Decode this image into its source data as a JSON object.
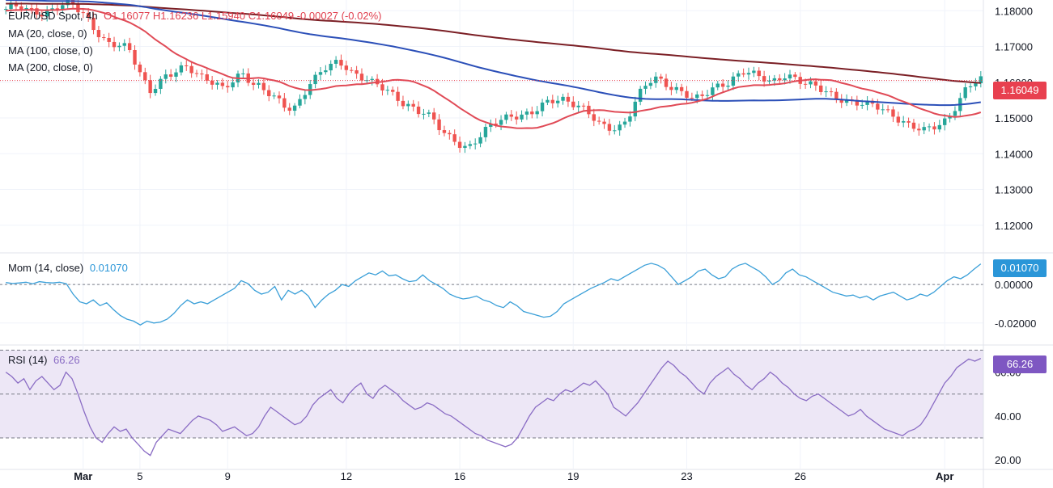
{
  "header": {
    "symbol": "EUR/USD Spot, 4h",
    "ohlc_label": "O1.16077  H1.16236  L1.15940  C1.16049  -0.00027 (-0.02%)"
  },
  "legend": {
    "ma20": "MA (20, close, 0)",
    "ma100": "MA (100, close, 0)",
    "ma200": "MA (200, close, 0)",
    "mom_label": "Mom (14, close)",
    "mom_value": "0.01070",
    "rsi_label": "RSI (14)",
    "rsi_value": "66.26"
  },
  "badges": {
    "price": "1.16049",
    "mom": "0.01070",
    "rsi": "66.26"
  },
  "colors": {
    "bull": "#26a69a",
    "bear": "#ef5350",
    "ma20": "#e04a56",
    "ma100": "#2b4fb8",
    "ma200": "#7b1f25",
    "momentum": "#3a9fd8",
    "rsi": "#8a6cc4",
    "rsi_band": "#ede7f6",
    "price_badge": "#e8404f",
    "mom_badge": "#2a96d8",
    "rsi_badge": "#7e57c2"
  },
  "chart_data": [
    {
      "type": "candlestick",
      "name": "price",
      "y_ticks": [
        "1.18000",
        "1.17000",
        "1.16000",
        "1.15000",
        "1.14000",
        "1.13000",
        "1.12000"
      ],
      "ylim": [
        1.1125,
        1.183
      ],
      "x_labels": [
        {
          "label": "Mar",
          "x": 15
        },
        {
          "label": "5",
          "x": 26
        },
        {
          "label": "9",
          "x": 43
        },
        {
          "label": "12",
          "x": 66
        },
        {
          "label": "16",
          "x": 88
        },
        {
          "label": "19",
          "x": 110
        },
        {
          "label": "23",
          "x": 132
        },
        {
          "label": "26",
          "x": 154
        },
        {
          "label": "Apr",
          "x": 182
        }
      ],
      "x_count": 190,
      "close": [
        1.1805,
        1.1812,
        1.1805,
        1.1798,
        1.18,
        1.1795,
        1.1804,
        1.1812,
        1.1815,
        1.1822,
        1.18,
        1.1785,
        1.176,
        1.1735,
        1.1712,
        1.1705,
        1.1698,
        1.169,
        1.165,
        1.161,
        1.158,
        1.16,
        1.1615,
        1.162,
        1.163,
        1.164,
        1.1632,
        1.162,
        1.1612,
        1.16,
        1.158,
        1.159,
        1.161,
        1.1622,
        1.16,
        1.1595,
        1.158,
        1.156,
        1.154,
        1.152,
        1.1525,
        1.156,
        1.16,
        1.162,
        1.164,
        1.1645,
        1.165,
        1.164,
        1.1625,
        1.162,
        1.1615,
        1.16,
        1.1585,
        1.157,
        1.155,
        1.154,
        1.1535,
        1.1525,
        1.152,
        1.15,
        1.147,
        1.1445,
        1.1435,
        1.1425,
        1.142,
        1.144,
        1.146,
        1.1475,
        1.1485,
        1.1495,
        1.1505,
        1.151,
        1.1515,
        1.152,
        1.153,
        1.154,
        1.1545,
        1.155,
        1.1548,
        1.1542,
        1.153,
        1.151,
        1.148,
        1.147,
        1.1465,
        1.1475,
        1.15,
        1.1545,
        1.158,
        1.16,
        1.1605,
        1.1595,
        1.1585,
        1.1582,
        1.1575,
        1.156,
        1.1555,
        1.1565,
        1.1578,
        1.159,
        1.16,
        1.162,
        1.1635,
        1.1628,
        1.1615,
        1.1605,
        1.1595,
        1.161,
        1.1625,
        1.1618,
        1.1605,
        1.1592,
        1.1585,
        1.1575,
        1.1568,
        1.156,
        1.1555,
        1.1548,
        1.154,
        1.1535,
        1.1532,
        1.1528,
        1.152,
        1.151,
        1.1495,
        1.148,
        1.147,
        1.146,
        1.147,
        1.148,
        1.1495,
        1.152,
        1.155,
        1.158,
        1.1595,
        1.1605
      ],
      "series": [
        {
          "name": "MA (20, close, 0)",
          "color_key": "ma20"
        },
        {
          "name": "MA (100, close, 0)",
          "color_key": "ma100"
        },
        {
          "name": "MA (200, close, 0)",
          "color_key": "ma200"
        }
      ]
    },
    {
      "type": "line",
      "name": "Mom (14, close)",
      "y_ticks": [
        "0.00000",
        "-0.02000"
      ],
      "ylim": [
        -0.031,
        0.016
      ],
      "values": [
        0.001,
        0.0005,
        0.0008,
        0.0012,
        0.0004,
        0.0015,
        0.001,
        0.0008,
        0.0012,
        0.0004,
        -0.005,
        -0.009,
        -0.01,
        -0.008,
        -0.011,
        -0.0095,
        -0.013,
        -0.016,
        -0.018,
        -0.019,
        -0.021,
        -0.019,
        -0.02,
        -0.0195,
        -0.018,
        -0.015,
        -0.011,
        -0.008,
        -0.01,
        -0.009,
        -0.01,
        -0.008,
        -0.006,
        -0.004,
        -0.002,
        0.002,
        0.0005,
        -0.003,
        -0.005,
        -0.004,
        -0.001,
        -0.008,
        -0.003,
        -0.005,
        -0.003,
        -0.006,
        -0.012,
        -0.008,
        -0.005,
        -0.003,
        0.0,
        -0.001,
        0.002,
        0.004,
        0.006,
        0.005,
        0.007,
        0.0045,
        0.005,
        0.003,
        0.0015,
        0.002,
        0.005,
        0.002,
        0.0,
        -0.002,
        -0.005,
        -0.0065,
        -0.0075,
        -0.007,
        -0.006,
        -0.008,
        -0.009,
        -0.011,
        -0.012,
        -0.009,
        -0.011,
        -0.014,
        -0.015,
        -0.016,
        -0.017,
        -0.0165,
        -0.014,
        -0.01,
        -0.008,
        -0.006,
        -0.004,
        -0.002,
        -0.0005,
        0.001,
        0.003,
        0.002,
        0.004,
        0.006,
        0.008,
        0.01,
        0.011,
        0.01,
        0.008,
        0.004,
        0.0,
        0.002,
        0.004,
        0.007,
        0.008,
        0.005,
        0.003,
        0.004,
        0.008,
        0.01,
        0.011,
        0.009,
        0.007,
        0.004,
        0.0,
        0.002,
        0.006,
        0.008,
        0.005,
        0.004,
        0.002,
        0.0,
        -0.002,
        -0.004,
        -0.005,
        -0.006,
        -0.0055,
        -0.007,
        -0.006,
        -0.008,
        -0.006,
        -0.005,
        -0.004,
        -0.006,
        -0.008,
        -0.007,
        -0.005,
        -0.006,
        -0.004,
        -0.001,
        0.002,
        0.004,
        0.003,
        0.005,
        0.008,
        0.0107
      ]
    },
    {
      "type": "line",
      "name": "RSI (14)",
      "y_ticks": [
        "60.00",
        "40.00",
        "20.00"
      ],
      "ylim": [
        16,
        72
      ],
      "bands": [
        30,
        50,
        70
      ],
      "values": [
        60,
        58,
        55,
        57,
        52,
        56,
        58,
        55,
        52,
        54,
        60,
        57,
        50,
        42,
        35,
        30,
        28,
        32,
        35,
        33,
        34,
        30,
        27,
        24,
        22,
        28,
        31,
        34,
        33,
        32,
        35,
        38,
        40,
        39,
        38,
        36,
        33,
        34,
        35,
        33,
        31,
        32,
        35,
        40,
        44,
        42,
        40,
        38,
        36,
        37,
        40,
        45,
        48,
        50,
        52,
        48,
        46,
        50,
        53,
        55,
        50,
        48,
        52,
        54,
        52,
        50,
        47,
        45,
        43,
        44,
        46,
        45,
        43,
        41,
        40,
        38,
        36,
        34,
        32,
        31,
        29,
        28,
        27,
        26,
        27,
        30,
        35,
        40,
        44,
        46,
        48,
        47,
        50,
        52,
        51,
        53,
        55,
        54,
        56,
        53,
        50,
        44,
        42,
        40,
        43,
        46,
        50,
        54,
        58,
        62,
        65,
        63,
        60,
        58,
        55,
        52,
        50,
        55,
        58,
        60,
        62,
        59,
        57,
        54,
        52,
        55,
        57,
        60,
        58,
        55,
        53,
        50,
        48,
        47,
        49,
        50,
        48,
        46,
        44,
        42,
        40,
        41,
        43,
        40,
        38,
        36,
        34,
        33,
        32,
        31,
        33,
        34,
        36,
        40,
        45,
        50,
        55,
        58,
        62,
        64,
        66,
        65,
        66.26
      ]
    }
  ]
}
